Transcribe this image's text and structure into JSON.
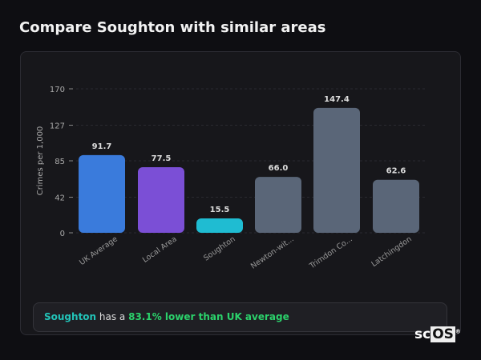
{
  "title": "Compare Soughton with similar areas",
  "chart_data": {
    "type": "bar",
    "ylabel": "Crimes per 1,000",
    "ylim": [
      0,
      170
    ],
    "yticks": [
      0,
      42,
      85,
      127,
      170
    ],
    "grid": true,
    "categories": [
      "UK Average",
      "Local Area",
      "Soughton",
      "Newton-wit...",
      "Trimdon Co...",
      "Latchingdon"
    ],
    "values": [
      91.7,
      77.5,
      15.5,
      66.0,
      147.4,
      62.6
    ],
    "data_labels": [
      "91.7",
      "77.5",
      "15.5",
      "66.0",
      "147.4",
      "62.6"
    ],
    "colors": [
      "#3a7bdc",
      "#7b4fd6",
      "#1fbcd2",
      "#5a6678",
      "#5a6678",
      "#5a6678"
    ]
  },
  "insight": {
    "area": "Soughton",
    "middle": " has a ",
    "highlight": "83.1% lower than UK average"
  },
  "logo": {
    "prefix": "sc",
    "suffix": "OS",
    "mark": "®"
  }
}
